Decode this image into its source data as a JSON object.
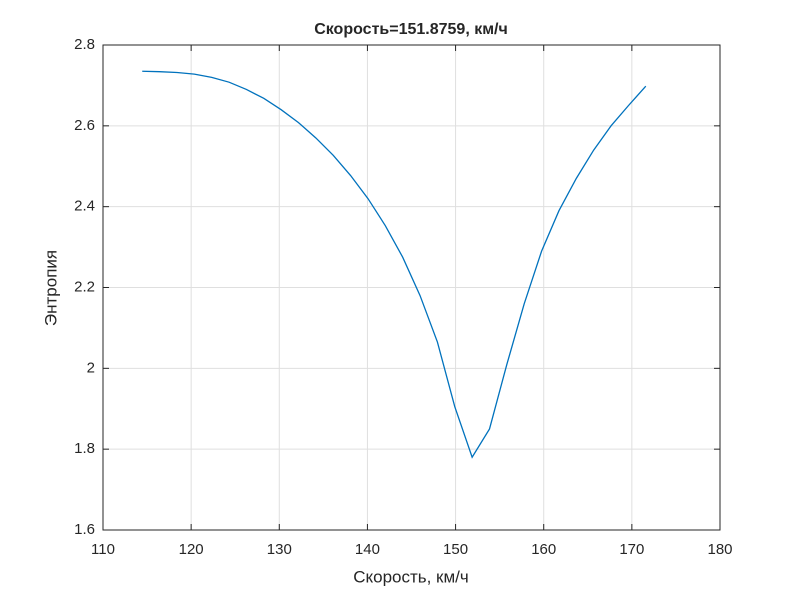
{
  "chart_data": {
    "type": "line",
    "title": "Скорость=151.8759, км/ч",
    "x_label": "Скорость, км/ч",
    "y_label": "Энтропия",
    "x": [
      114.45,
      116.42,
      118.39,
      120.36,
      122.33,
      124.3,
      126.27,
      128.24,
      130.21,
      132.18,
      134.15,
      136.12,
      138.09,
      140.06,
      142.03,
      144.0,
      145.97,
      147.94,
      149.91,
      151.88,
      153.85,
      155.82,
      157.79,
      159.76,
      161.73,
      163.7,
      165.67,
      167.64,
      169.61,
      171.58
    ],
    "series": [
      {
        "color": "#0072bd",
        "values": [
          2.735,
          2.734,
          2.732,
          2.728,
          2.72,
          2.708,
          2.69,
          2.668,
          2.64,
          2.608,
          2.57,
          2.527,
          2.477,
          2.42,
          2.353,
          2.275,
          2.18,
          2.065,
          1.905,
          1.78,
          1.85,
          2.01,
          2.16,
          2.29,
          2.39,
          2.47,
          2.54,
          2.6,
          2.65,
          2.698
        ]
      }
    ],
    "xlim": [
      110,
      180
    ],
    "xticks": [
      110,
      120,
      130,
      140,
      150,
      160,
      170,
      180
    ],
    "ylim": [
      1.6,
      2.8
    ],
    "yticks": [
      1.6,
      1.8,
      2,
      2.2,
      2.4,
      2.6,
      2.8
    ],
    "grid": true
  }
}
